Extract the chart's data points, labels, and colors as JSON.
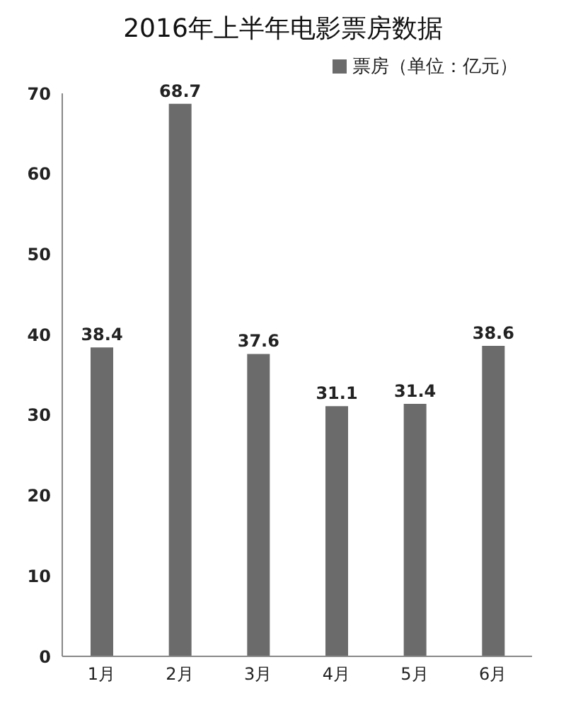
{
  "chart_data": {
    "type": "bar",
    "title": "2016年上半年电影票房数据",
    "categories": [
      "1月",
      "2月",
      "3月",
      "4月",
      "5月",
      "6月"
    ],
    "series": [
      {
        "name": "票房（单位：亿元）",
        "color": "#6b6b6b",
        "values": [
          38.4,
          68.7,
          37.6,
          31.1,
          31.4,
          38.6
        ]
      }
    ],
    "ylim": [
      0,
      70
    ],
    "yticks": [
      0,
      10,
      20,
      30,
      40,
      50,
      60,
      70
    ],
    "grid": false,
    "legend": "top right",
    "data_labels": true
  }
}
